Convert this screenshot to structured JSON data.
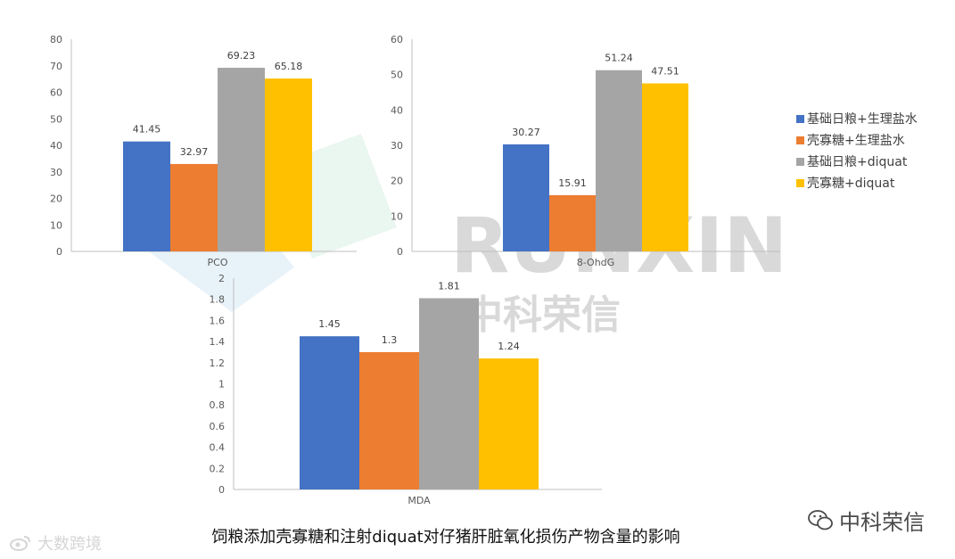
{
  "chart_data": [
    {
      "type": "bar",
      "categories": [
        "PCO"
      ],
      "series": [
        {
          "name": "基础日粮+生理盐水",
          "values": [
            41.45
          ]
        },
        {
          "name": "壳寡糖+生理盐水",
          "values": [
            32.97
          ]
        },
        {
          "name": "基础日粮+diquat",
          "values": [
            69.23
          ]
        },
        {
          "name": "壳寡糖+diquat",
          "values": [
            65.18
          ]
        }
      ],
      "data_labels": [
        "41.45",
        "32.97",
        "69.23",
        "65.18"
      ],
      "ylim": [
        0,
        80
      ],
      "yticks": [
        "0",
        "10",
        "20",
        "30",
        "40",
        "50",
        "60",
        "70",
        "80"
      ],
      "ytick_values": [
        0,
        10,
        20,
        30,
        40,
        50,
        60,
        70,
        80
      ],
      "grid": false
    },
    {
      "type": "bar",
      "categories": [
        "8-OhdG"
      ],
      "series": [
        {
          "name": "基础日粮+生理盐水",
          "values": [
            30.27
          ]
        },
        {
          "name": "壳寡糖+生理盐水",
          "values": [
            15.91
          ]
        },
        {
          "name": "基础日粮+diquat",
          "values": [
            51.24
          ]
        },
        {
          "name": "壳寡糖+diquat",
          "values": [
            47.51
          ]
        }
      ],
      "data_labels": [
        "30.27",
        "15.91",
        "51.24",
        "47.51"
      ],
      "ylim": [
        0,
        60
      ],
      "yticks": [
        "0",
        "10",
        "20",
        "30",
        "40",
        "50",
        "60"
      ],
      "ytick_values": [
        0,
        10,
        20,
        30,
        40,
        50,
        60
      ],
      "grid": false
    },
    {
      "type": "bar",
      "categories": [
        "MDA"
      ],
      "series": [
        {
          "name": "基础日粮+生理盐水",
          "values": [
            1.45
          ]
        },
        {
          "name": "壳寡糖+生理盐水",
          "values": [
            1.3
          ]
        },
        {
          "name": "基础日粮+diquat",
          "values": [
            1.81
          ]
        },
        {
          "name": "壳寡糖+diquat",
          "values": [
            1.24
          ]
        }
      ],
      "data_labels": [
        "1.45",
        "1.3",
        "1.81",
        "1.24"
      ],
      "ylim": [
        0,
        2
      ],
      "yticks": [
        "0",
        "0.2",
        "0.4",
        "0.6",
        "0.8",
        "1",
        "1.2",
        "1.4",
        "1.6",
        "1.8",
        "2"
      ],
      "ytick_values": [
        0,
        0.2,
        0.4,
        0.6,
        0.8,
        1,
        1.2,
        1.4,
        1.6,
        1.8,
        2
      ],
      "grid": false
    }
  ],
  "legend": {
    "placement": "right",
    "items": [
      {
        "label": "基础日粮+生理盐水",
        "color": "#4472C4"
      },
      {
        "label": "壳寡糖+生理盐水",
        "color": "#ED7D31"
      },
      {
        "label": "基础日粮+diquat",
        "color": "#A5A5A5"
      },
      {
        "label": "壳寡糖+diquat",
        "color": "#FFC000"
      }
    ]
  },
  "series_colors": [
    "#4472C4",
    "#ED7D31",
    "#A5A5A5",
    "#FFC000"
  ],
  "caption": "饲粮添加壳寡糖和注射diquat对仔猪肝脏氧化损伤产物含量的影响",
  "watermarks": {
    "center_latin": "RUNXIN",
    "center_cjk": "中科荣信",
    "bottom_left": "大数跨境",
    "bottom_right": "中科荣信"
  }
}
